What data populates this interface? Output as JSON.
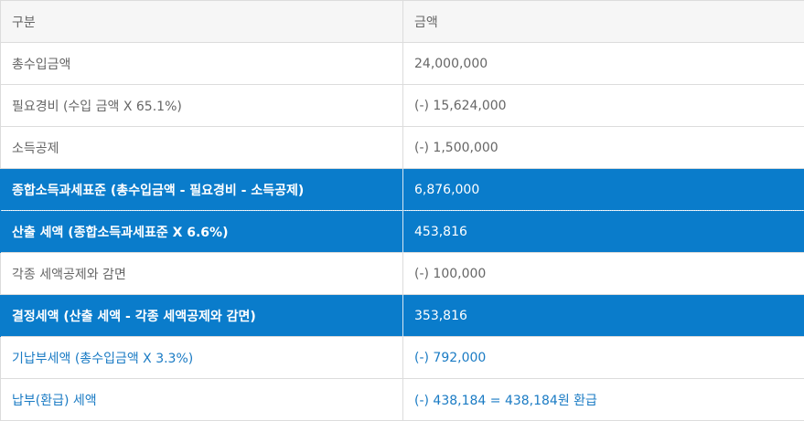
{
  "table": {
    "header": {
      "category": "구분",
      "amount": "금액"
    },
    "rows": [
      {
        "label": "총수입금액",
        "value": "24,000,000"
      },
      {
        "label": "필요경비 (수입 금액 X 65.1%)",
        "value": "(-) 15,624,000"
      },
      {
        "label": "소득공제",
        "value": "(-) 1,500,000"
      },
      {
        "label": "종합소득과세표준 (총수입금액 - 필요경비 - 소득공제)",
        "value": "6,876,000"
      },
      {
        "label": "산출 세액 (종합소득과세표준 X 6.6%)",
        "value": "453,816"
      },
      {
        "label": "각종 세액공제와 감면",
        "value": "(-) 100,000"
      },
      {
        "label": "결정세액 (산출 세액 - 각종 세액공제와 감면)",
        "value": "353,816"
      },
      {
        "label": "기납부세액 (총수입금액 X 3.3%)",
        "value": "(-) 792,000"
      },
      {
        "label": "납부(환급) 세액",
        "value": "(-) 438,184 = 438,184원 환급"
      }
    ]
  },
  "colors": {
    "highlight_bg": "#0a7ccb",
    "highlight_text": "#ffffff",
    "blue_text": "#1a7bc4",
    "header_bg": "#f6f6f6",
    "body_text": "#666666"
  }
}
